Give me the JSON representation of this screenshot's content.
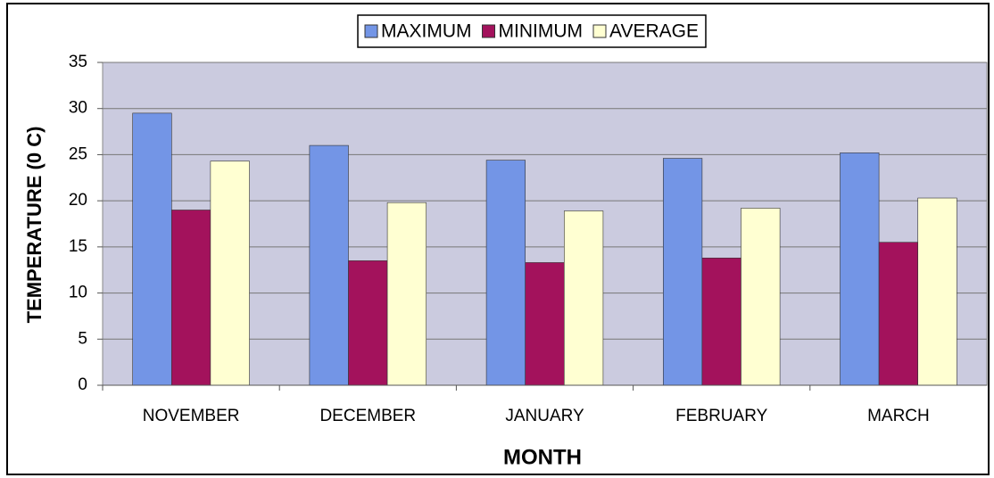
{
  "chart_data": {
    "type": "bar",
    "categories": [
      "NOVEMBER",
      "DECEMBER",
      "JANUARY",
      "FEBRUARY",
      "MARCH"
    ],
    "series": [
      {
        "name": "MAXIMUM",
        "color": "#7395e6",
        "values": [
          29.5,
          26,
          24.4,
          24.6,
          25.2
        ]
      },
      {
        "name": "MINIMUM",
        "color": "#a3125c",
        "values": [
          19,
          13.5,
          13.3,
          13.8,
          15.5
        ]
      },
      {
        "name": "AVERAGE",
        "color": "#ffffd2",
        "values": [
          24.3,
          19.8,
          18.9,
          19.2,
          20.3
        ]
      }
    ],
    "ylabel": "TEMPERATURE (0 C)",
    "xlabel": "MONTH",
    "ylim": [
      0,
      35
    ],
    "yticks": [
      0,
      5,
      10,
      15,
      20,
      25,
      30,
      35
    ],
    "grid": true,
    "legend": "top"
  }
}
